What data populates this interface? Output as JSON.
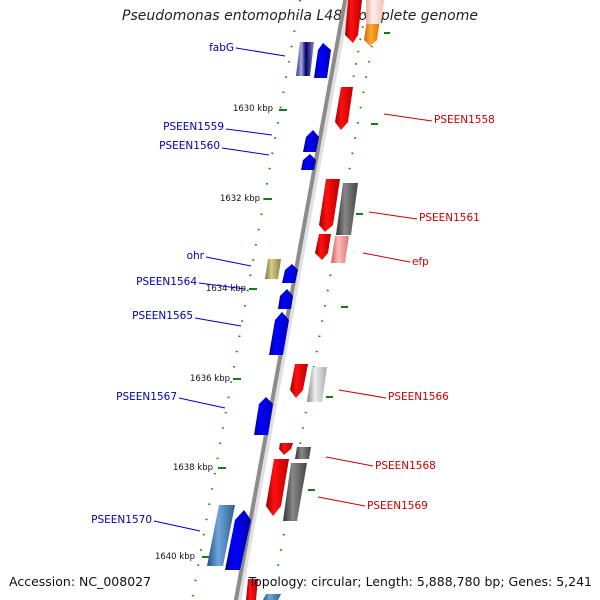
{
  "header": {
    "title": "Pseudomonas entomophila L48, complete genome"
  },
  "footer": {
    "accession": "Accession: NC_008027",
    "topology": "Topology: circular; Length: 5,888,780 bp; Genes: 5,241"
  },
  "colors": {
    "minus_strand_label": "#0000aa",
    "plus_strand_label": "#cc0000",
    "backbone": "#888888",
    "tick": "#1a7a1a"
  },
  "scale": {
    "ticks": [
      "1630 kbp",
      "1632 kbp",
      "1634 kbp",
      "1636 kbp",
      "1638 kbp",
      "1640 kbp"
    ]
  },
  "genes": {
    "minus_strand": [
      "fabG",
      "PSEEN1559",
      "PSEEN1560",
      "ohr",
      "PSEEN1564",
      "PSEEN1565",
      "PSEEN1567",
      "PSEEN1570"
    ],
    "plus_strand": [
      "PSEEN1558",
      "PSEEN1561",
      "efp",
      "PSEEN1566",
      "PSEEN1568",
      "PSEEN1569"
    ]
  }
}
